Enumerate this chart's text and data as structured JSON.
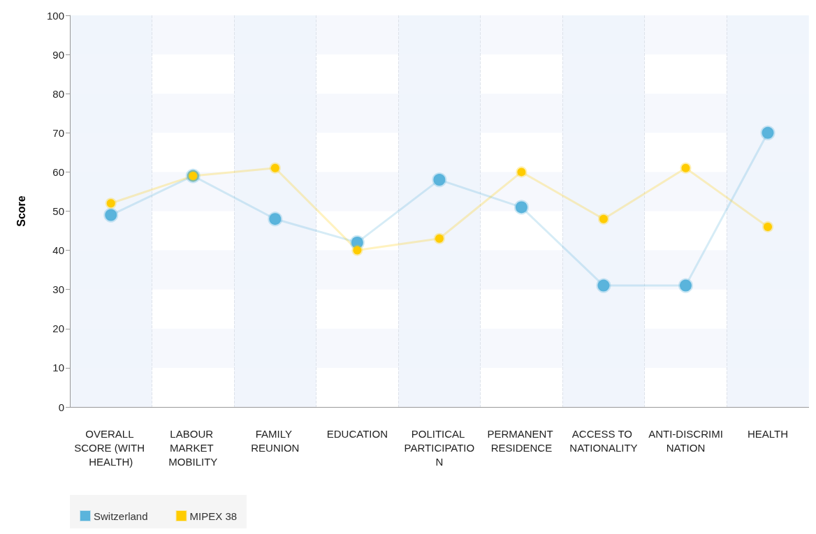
{
  "chart_data": {
    "type": "line",
    "ylabel": "Score",
    "categories": [
      "OVERALL SCORE (WITH HEALTH)",
      "LABOUR MARKET MOBILITY",
      "FAMILY REUNION",
      "EDUCATION",
      "POLITICAL PARTICIPATION",
      "PERMANENT RESIDENCE",
      "ACCESS TO NATIONALITY",
      "ANTI-DISCRIMINATION",
      "HEALTH"
    ],
    "series": [
      {
        "name": "Switzerland",
        "color": "#5ab4dc",
        "values": [
          49,
          59,
          48,
          42,
          58,
          51,
          31,
          31,
          70
        ]
      },
      {
        "name": "MIPEX 38",
        "color": "#ffcc00",
        "values": [
          52,
          59,
          61,
          40,
          43,
          60,
          48,
          61,
          46
        ]
      }
    ],
    "ylim": [
      0,
      100
    ],
    "yticks": [
      0,
      10,
      20,
      30,
      40,
      50,
      60,
      70,
      80,
      90,
      100
    ],
    "grid": "x",
    "legend": "bottom left",
    "marker": "circle",
    "line_style": "solid"
  }
}
